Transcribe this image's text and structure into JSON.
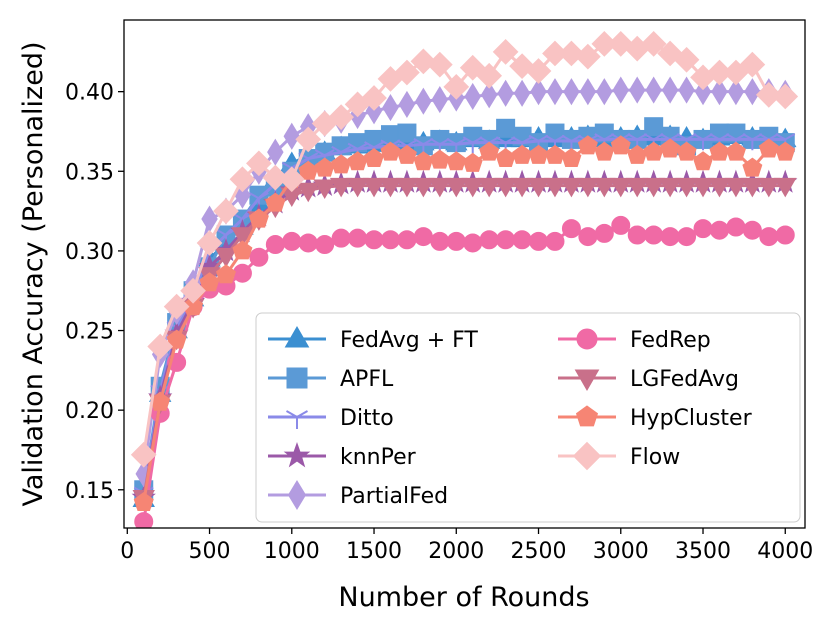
{
  "chart_data": {
    "type": "line",
    "xlabel": "Number of Rounds",
    "ylabel": "Validation Accuracy (Personalized)",
    "xlim": [
      -20,
      4120
    ],
    "ylim": [
      0.126,
      0.445
    ],
    "x_ticks": [
      0,
      500,
      1000,
      1500,
      2000,
      2500,
      3000,
      3500,
      4000
    ],
    "y_ticks": [
      0.15,
      0.2,
      0.25,
      0.3,
      0.35,
      0.4
    ],
    "grid": false,
    "legend_position": "lower-right",
    "x": [
      100,
      200,
      300,
      400,
      500,
      600,
      700,
      800,
      900,
      1000,
      1100,
      1200,
      1300,
      1400,
      1500,
      1600,
      1700,
      1800,
      1900,
      2000,
      2100,
      2200,
      2300,
      2400,
      2500,
      2600,
      2700,
      2800,
      2900,
      3000,
      3100,
      3200,
      3300,
      3400,
      3500,
      3600,
      3700,
      3800,
      3900,
      4000
    ],
    "series": [
      {
        "name": "FedAvg + FT",
        "color": "#3b8fd1",
        "marker": "triangle-up",
        "values": [
          0.144,
          0.21,
          0.25,
          0.27,
          0.295,
          0.305,
          0.315,
          0.33,
          0.345,
          0.355,
          0.36,
          0.362,
          0.365,
          0.366,
          0.367,
          0.368,
          0.368,
          0.368,
          0.369,
          0.368,
          0.37,
          0.369,
          0.37,
          0.37,
          0.371,
          0.37,
          0.371,
          0.372,
          0.37,
          0.371,
          0.372,
          0.371,
          0.372,
          0.371,
          0.37,
          0.371,
          0.372,
          0.371,
          0.37,
          0.37
        ]
      },
      {
        "name": "APFL",
        "color": "#5b9ad6",
        "marker": "square",
        "values": [
          0.15,
          0.215,
          0.255,
          0.275,
          0.29,
          0.31,
          0.32,
          0.335,
          0.34,
          0.35,
          0.358,
          0.362,
          0.366,
          0.368,
          0.37,
          0.373,
          0.374,
          0.366,
          0.37,
          0.368,
          0.372,
          0.37,
          0.377,
          0.372,
          0.368,
          0.374,
          0.37,
          0.372,
          0.374,
          0.37,
          0.37,
          0.378,
          0.372,
          0.366,
          0.37,
          0.374,
          0.374,
          0.37,
          0.372,
          0.368
        ]
      },
      {
        "name": "Ditto",
        "color": "#8a8ae8",
        "marker": "tri-down",
        "values": [
          0.148,
          0.212,
          0.252,
          0.272,
          0.3,
          0.31,
          0.32,
          0.333,
          0.342,
          0.352,
          0.358,
          0.36,
          0.362,
          0.364,
          0.365,
          0.366,
          0.366,
          0.367,
          0.367,
          0.367,
          0.368,
          0.368,
          0.368,
          0.368,
          0.369,
          0.369,
          0.369,
          0.369,
          0.37,
          0.37,
          0.37,
          0.37,
          0.37,
          0.37,
          0.37,
          0.37,
          0.37,
          0.37,
          0.37,
          0.37
        ]
      },
      {
        "name": "knnPer",
        "color": "#9b59a8",
        "marker": "star",
        "values": [
          0.145,
          0.208,
          0.248,
          0.268,
          0.29,
          0.3,
          0.312,
          0.322,
          0.33,
          0.338,
          0.34,
          0.341,
          0.342,
          0.343,
          0.343,
          0.343,
          0.343,
          0.343,
          0.343,
          0.343,
          0.343,
          0.343,
          0.343,
          0.343,
          0.343,
          0.343,
          0.343,
          0.343,
          0.343,
          0.343,
          0.343,
          0.343,
          0.343,
          0.343,
          0.343,
          0.343,
          0.343,
          0.343,
          0.343,
          0.343
        ]
      },
      {
        "name": "PartialFed",
        "color": "#b39ce0",
        "marker": "thin-diamond",
        "values": [
          0.16,
          0.235,
          0.262,
          0.28,
          0.32,
          0.325,
          0.335,
          0.35,
          0.362,
          0.372,
          0.378,
          0.38,
          0.382,
          0.385,
          0.388,
          0.39,
          0.392,
          0.394,
          0.395,
          0.396,
          0.397,
          0.398,
          0.399,
          0.399,
          0.4,
          0.4,
          0.4,
          0.4,
          0.4,
          0.401,
          0.401,
          0.401,
          0.401,
          0.401,
          0.4,
          0.4,
          0.4,
          0.4,
          0.4,
          0.399
        ]
      },
      {
        "name": "FedRep",
        "color": "#f06aa5",
        "marker": "circle",
        "values": [
          0.13,
          0.198,
          0.23,
          0.265,
          0.276,
          0.278,
          0.286,
          0.296,
          0.304,
          0.306,
          0.305,
          0.304,
          0.308,
          0.308,
          0.307,
          0.307,
          0.307,
          0.309,
          0.306,
          0.306,
          0.305,
          0.307,
          0.307,
          0.307,
          0.306,
          0.306,
          0.314,
          0.309,
          0.311,
          0.316,
          0.31,
          0.31,
          0.309,
          0.309,
          0.314,
          0.313,
          0.315,
          0.313,
          0.309,
          0.31
        ]
      },
      {
        "name": "LGFedAvg",
        "color": "#c9708a",
        "marker": "triangle-down",
        "values": [
          0.145,
          0.205,
          0.245,
          0.265,
          0.285,
          0.297,
          0.31,
          0.32,
          0.328,
          0.335,
          0.338,
          0.34,
          0.341,
          0.341,
          0.341,
          0.341,
          0.341,
          0.341,
          0.341,
          0.341,
          0.341,
          0.341,
          0.341,
          0.341,
          0.341,
          0.341,
          0.341,
          0.341,
          0.341,
          0.341,
          0.341,
          0.341,
          0.341,
          0.341,
          0.341,
          0.341,
          0.341,
          0.341,
          0.341,
          0.341
        ]
      },
      {
        "name": "HypCluster",
        "color": "#f68574",
        "marker": "pentagon",
        "values": [
          0.142,
          0.205,
          0.244,
          0.265,
          0.28,
          0.285,
          0.3,
          0.32,
          0.33,
          0.345,
          0.35,
          0.352,
          0.354,
          0.356,
          0.358,
          0.362,
          0.36,
          0.356,
          0.357,
          0.356,
          0.355,
          0.362,
          0.358,
          0.36,
          0.36,
          0.36,
          0.358,
          0.366,
          0.362,
          0.366,
          0.36,
          0.362,
          0.364,
          0.362,
          0.356,
          0.362,
          0.362,
          0.352,
          0.364,
          0.362
        ]
      },
      {
        "name": "Flow",
        "color": "#f9c3c3",
        "marker": "diamond",
        "values": [
          0.172,
          0.24,
          0.265,
          0.275,
          0.305,
          0.325,
          0.345,
          0.355,
          0.346,
          0.345,
          0.37,
          0.38,
          0.384,
          0.392,
          0.396,
          0.408,
          0.412,
          0.419,
          0.417,
          0.403,
          0.415,
          0.41,
          0.425,
          0.416,
          0.413,
          0.424,
          0.424,
          0.422,
          0.43,
          0.43,
          0.427,
          0.43,
          0.424,
          0.42,
          0.409,
          0.412,
          0.412,
          0.417,
          0.398,
          0.397
        ]
      }
    ]
  }
}
